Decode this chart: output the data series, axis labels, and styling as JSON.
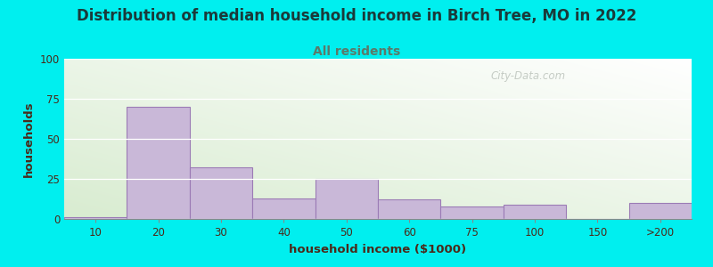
{
  "title": "Distribution of median household income in Birch Tree, MO in 2022",
  "subtitle": "All residents",
  "xlabel": "household income ($1000)",
  "ylabel": "households",
  "bar_labels": [
    "10",
    "20",
    "30",
    "40",
    "50",
    "60",
    "75",
    "100",
    "150",
    ">200"
  ],
  "bar_values": [
    1,
    70,
    32,
    13,
    25,
    12,
    8,
    9,
    0,
    10
  ],
  "bar_color": "#c9b8d8",
  "bar_edge_color": "#9b7bb5",
  "ylim": [
    0,
    100
  ],
  "yticks": [
    0,
    25,
    50,
    75,
    100
  ],
  "bg_outer": "#00efef",
  "bg_plot_top_left": "#d8ecd0",
  "bg_plot_bottom_right": "#ffffff",
  "title_color": "#1a3a3a",
  "subtitle_color": "#5a7a6a",
  "axis_label_color": "#4a2a1a",
  "tick_label_color": "#4a2a1a",
  "watermark": "City-Data.com",
  "title_fontsize": 12,
  "subtitle_fontsize": 10,
  "axis_label_fontsize": 9.5,
  "tick_fontsize": 8.5
}
